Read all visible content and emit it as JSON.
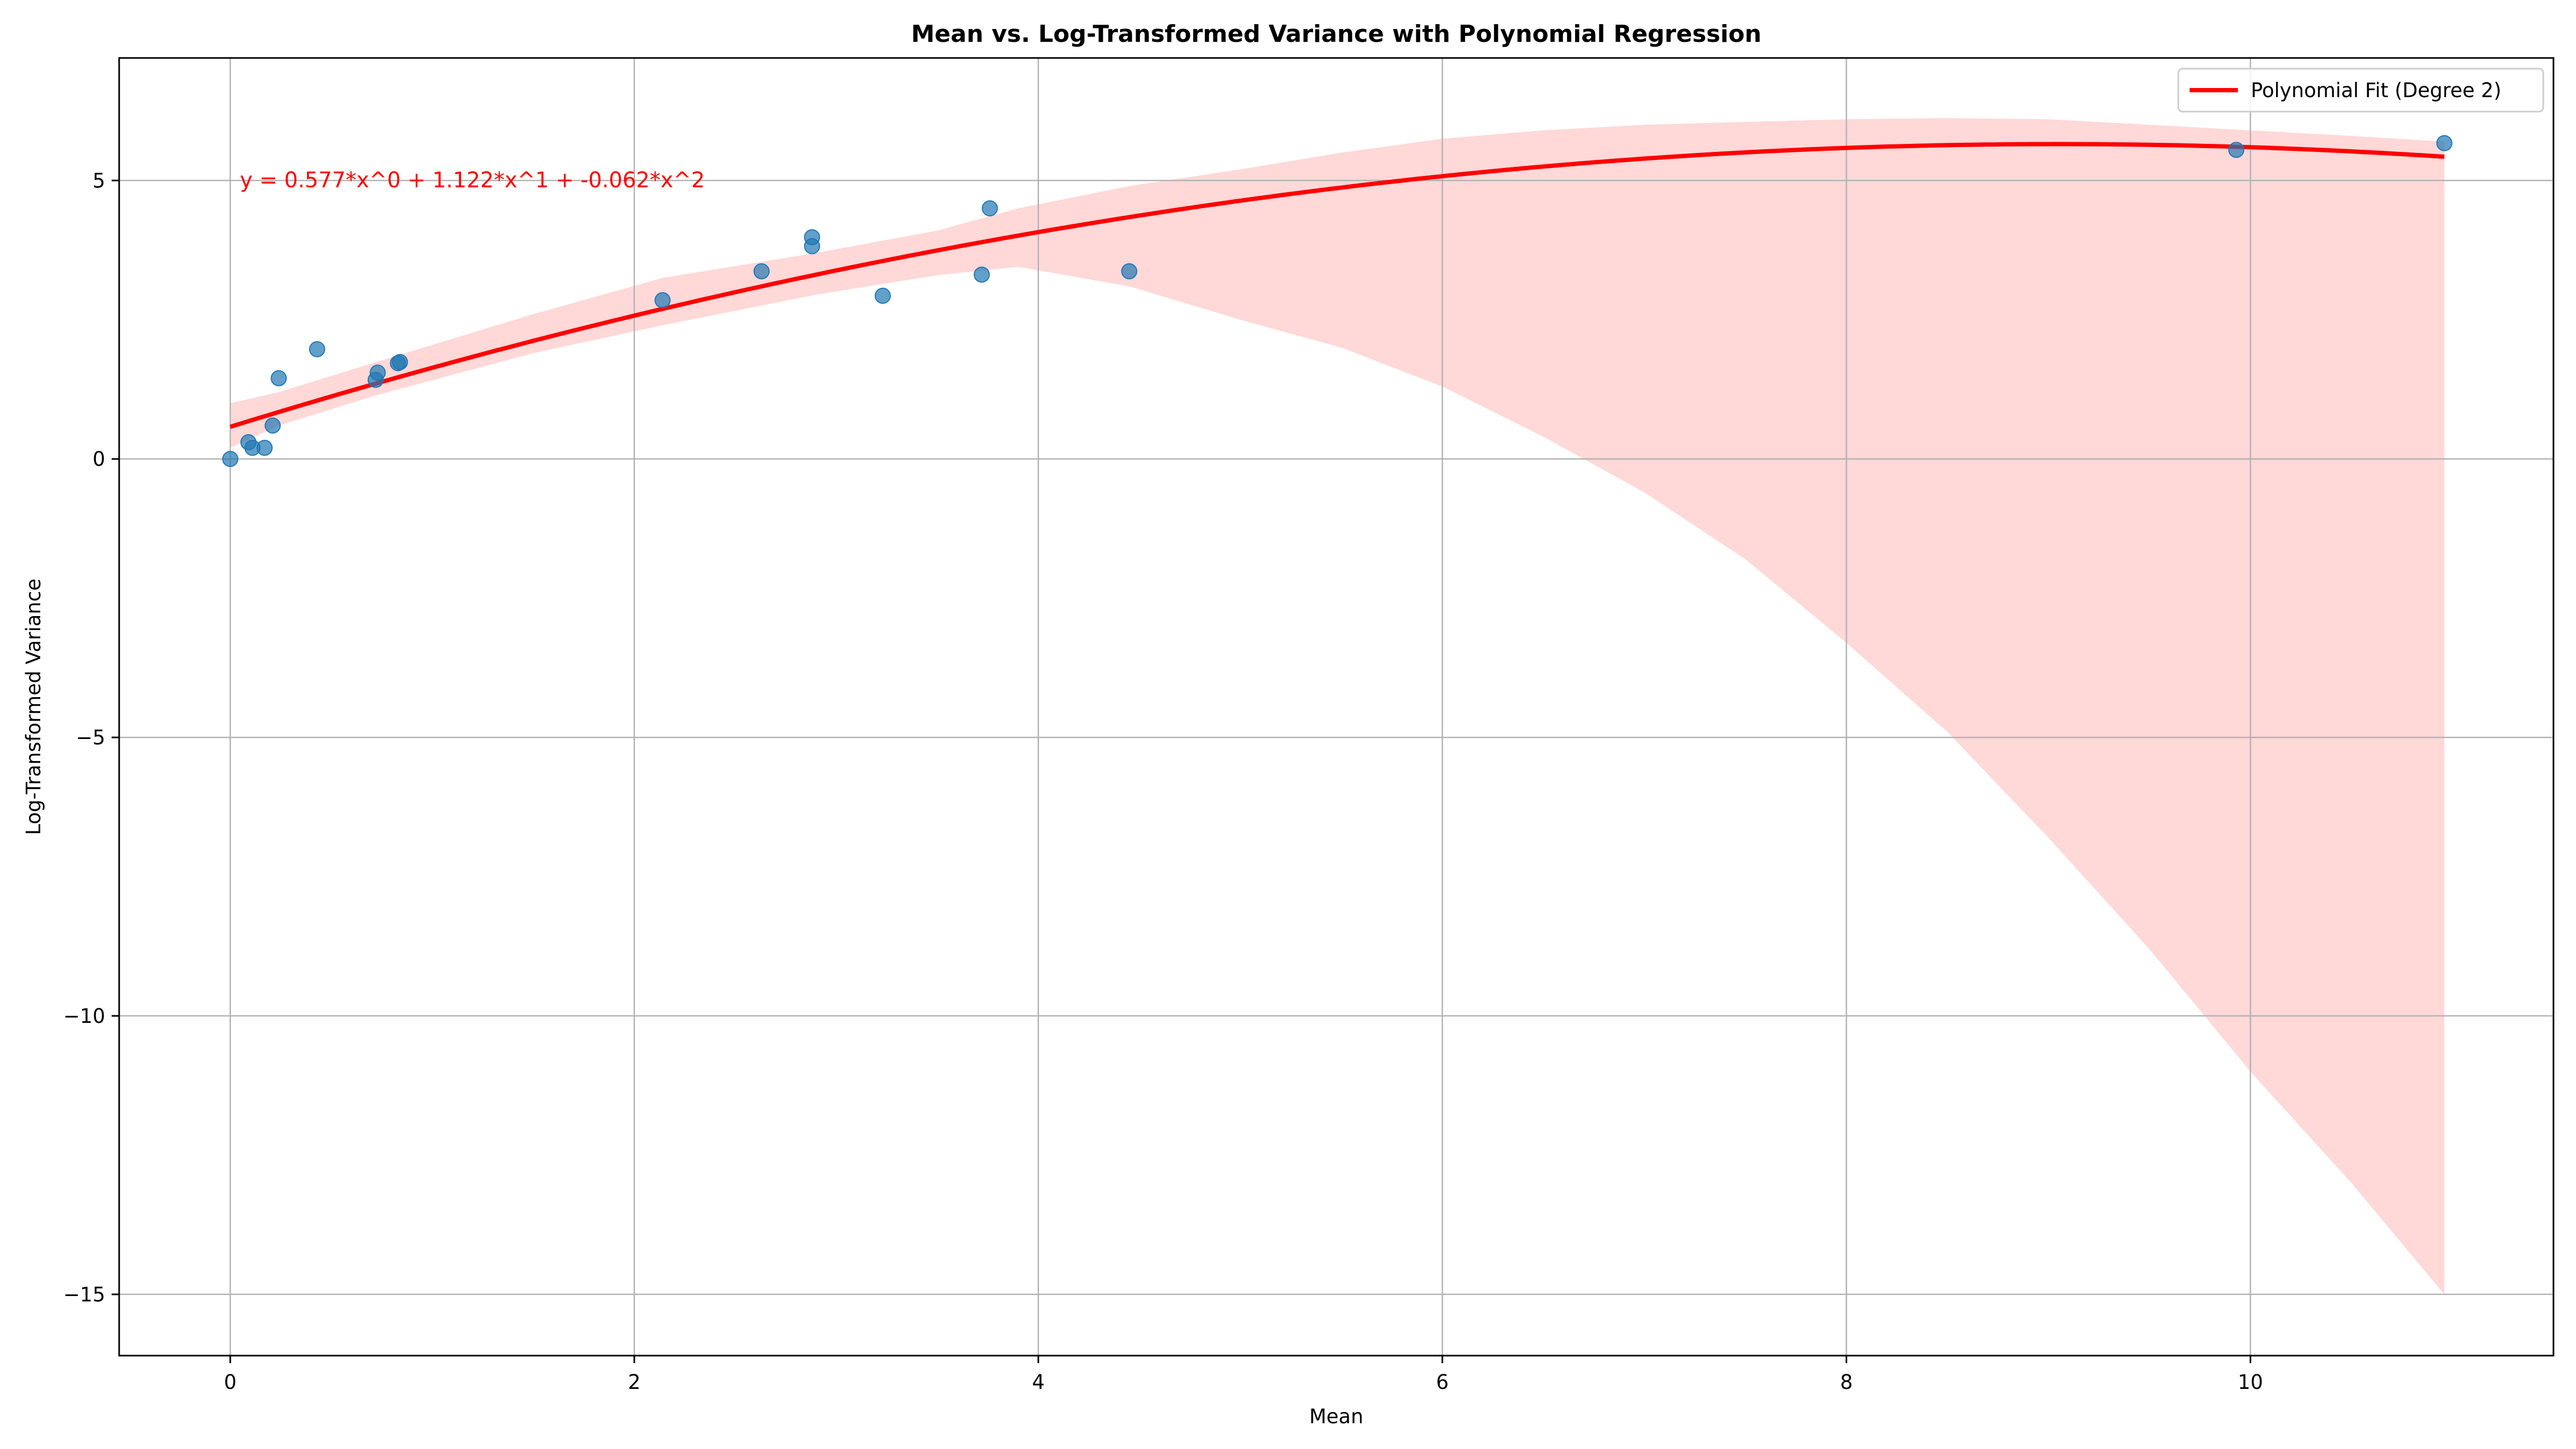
{
  "chart_data": {
    "type": "scatter",
    "title": "Mean vs. Log-Transformed Variance with Polynomial Regression",
    "xlabel": "Mean",
    "ylabel": "Log-Transformed Variance",
    "xlim": [
      -0.55,
      11.5
    ],
    "ylim": [
      -16.1,
      7.2
    ],
    "x_ticks": [
      0,
      2,
      4,
      6,
      8,
      10
    ],
    "x_tick_labels": [
      "0",
      "2",
      "4",
      "6",
      "8",
      "10"
    ],
    "y_ticks": [
      5,
      0,
      -5,
      -10,
      -15
    ],
    "y_tick_labels": [
      "5",
      "0",
      "−5",
      "−10",
      "−15"
    ],
    "grid": true,
    "legend_position": "top-right",
    "points": [
      {
        "x": 0.0,
        "y": 0.0
      },
      {
        "x": 0.09,
        "y": 0.3
      },
      {
        "x": 0.11,
        "y": 0.2
      },
      {
        "x": 0.17,
        "y": 0.2
      },
      {
        "x": 0.21,
        "y": 0.6
      },
      {
        "x": 0.24,
        "y": 1.45
      },
      {
        "x": 0.43,
        "y": 1.97
      },
      {
        "x": 0.72,
        "y": 1.42
      },
      {
        "x": 0.73,
        "y": 1.55
      },
      {
        "x": 0.83,
        "y": 1.72
      },
      {
        "x": 0.84,
        "y": 1.74
      },
      {
        "x": 2.14,
        "y": 2.85
      },
      {
        "x": 2.63,
        "y": 3.37
      },
      {
        "x": 2.88,
        "y": 3.82
      },
      {
        "x": 2.88,
        "y": 3.98
      },
      {
        "x": 3.23,
        "y": 2.93
      },
      {
        "x": 3.72,
        "y": 3.31
      },
      {
        "x": 3.76,
        "y": 4.5
      },
      {
        "x": 4.45,
        "y": 3.37
      },
      {
        "x": 9.93,
        "y": 5.55
      },
      {
        "x": 10.96,
        "y": 5.67
      }
    ],
    "fit": {
      "name": "Polynomial Fit (Degree 2)",
      "coefficients": [
        0.577,
        1.122,
        -0.062
      ],
      "x_range": [
        0.0,
        10.96
      ],
      "color": "#ff0000"
    },
    "confidence_band": {
      "color": "#ffd8d8",
      "x": [
        0.0,
        0.24,
        0.73,
        1.5,
        2.14,
        2.9,
        3.5,
        3.9,
        4.45,
        5.0,
        5.5,
        6.0,
        6.5,
        7.0,
        7.5,
        8.0,
        8.5,
        9.0,
        9.5,
        10.0,
        10.5,
        10.96
      ],
      "upper": [
        1.0,
        1.2,
        1.75,
        2.6,
        3.25,
        3.7,
        4.1,
        4.5,
        4.9,
        5.2,
        5.5,
        5.75,
        5.9,
        6.0,
        6.05,
        6.1,
        6.12,
        6.1,
        6.0,
        5.9,
        5.8,
        5.7
      ],
      "lower": [
        0.2,
        0.6,
        1.15,
        1.9,
        2.4,
        2.95,
        3.3,
        3.45,
        3.1,
        2.5,
        2.0,
        1.3,
        0.4,
        -0.6,
        -1.8,
        -3.3,
        -4.9,
        -6.8,
        -8.8,
        -11.0,
        -13.0,
        -15.0
      ]
    },
    "annotation": "y = 0.577*x^0 + 1.122*x^1 + -0.062*x^2",
    "point_color": "#1f77b4"
  }
}
